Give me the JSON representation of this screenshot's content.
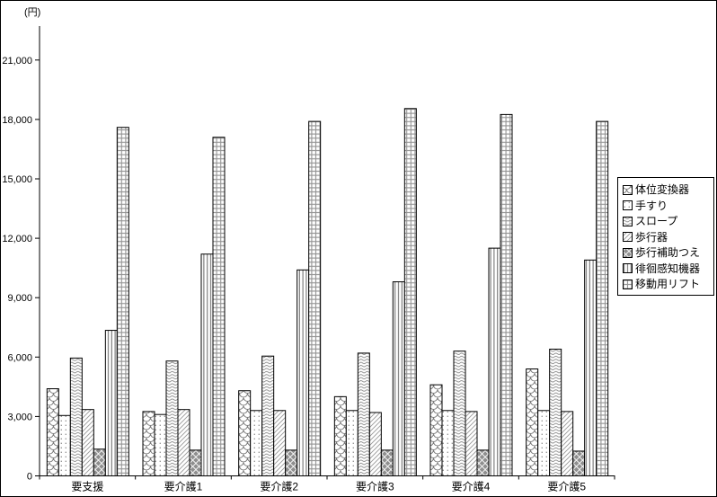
{
  "chart_data": {
    "type": "bar",
    "title": "",
    "unit_label": "(円)",
    "xlabel": "",
    "ylabel": "",
    "categories": [
      "要支援",
      "要介護1",
      "要介護2",
      "要介護3",
      "要介護4",
      "要介護5"
    ],
    "series": [
      {
        "name": "体位変換器",
        "pattern": "fish-scale-icon",
        "values": [
          4400,
          3250,
          4300,
          4000,
          4600,
          5400
        ]
      },
      {
        "name": "手すり",
        "pattern": "dots-icon",
        "values": [
          3050,
          3100,
          3300,
          3300,
          3300,
          3300
        ]
      },
      {
        "name": "スロープ",
        "pattern": "horizontal-wave-icon",
        "values": [
          5950,
          5800,
          6050,
          6200,
          6300,
          6400
        ]
      },
      {
        "name": "歩行器",
        "pattern": "diagonal-hatch-icon",
        "values": [
          3350,
          3350,
          3300,
          3200,
          3250,
          3250
        ]
      },
      {
        "name": "歩行補助つえ",
        "pattern": "gray-diamond-icon",
        "values": [
          1350,
          1300,
          1300,
          1300,
          1300,
          1250
        ]
      },
      {
        "name": "徘徊感知機器",
        "pattern": "vertical-stripe-icon",
        "values": [
          7350,
          11200,
          10400,
          9800,
          11500,
          10900
        ]
      },
      {
        "name": "移動用リフト",
        "pattern": "grid-check-icon",
        "values": [
          17600,
          17100,
          17900,
          18550,
          18250,
          17900
        ]
      }
    ],
    "y_axis": {
      "ticks": [
        {
          "value": 0,
          "label": "0"
        },
        {
          "value": 3000,
          "label": "3,000"
        },
        {
          "value": 6000,
          "label": "6,000"
        },
        {
          "value": 9000,
          "label": "9,000"
        },
        {
          "value": 12000,
          "label": "12,000"
        },
        {
          "value": 15000,
          "label": "15,000"
        },
        {
          "value": 18000,
          "label": "18,000"
        },
        {
          "value": 21000,
          "label": "21,000"
        }
      ],
      "ylim": [
        0,
        22600
      ]
    },
    "grid": "off",
    "legend_position": "right",
    "colors": {
      "bar_outline": "#000000",
      "pattern_gray": "#8c8c8c",
      "background": "#ffffff"
    }
  }
}
